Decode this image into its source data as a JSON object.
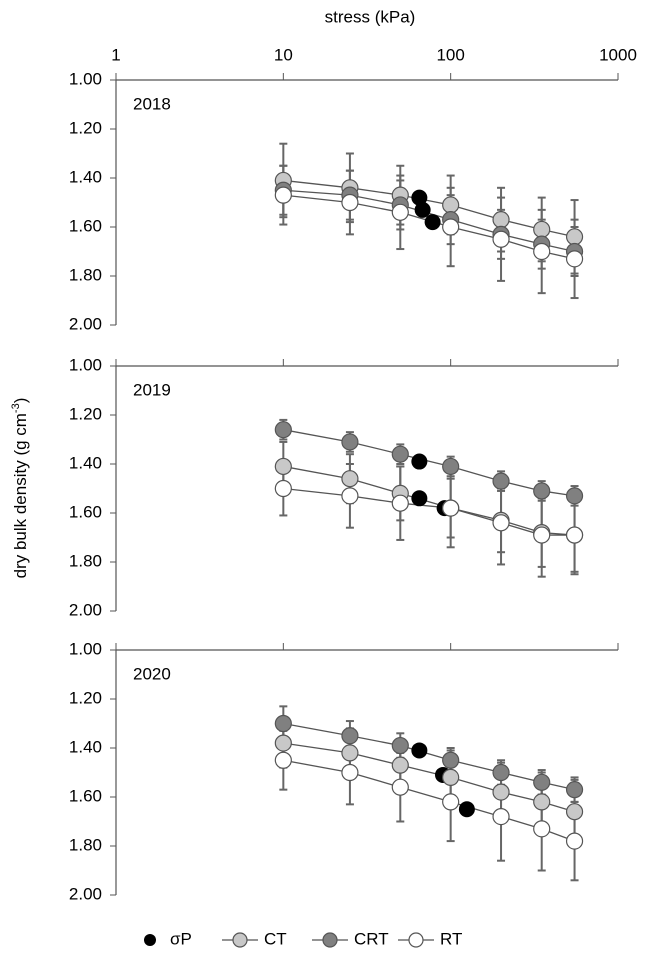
{
  "xlabel": "stress (kPa)",
  "ylabel": [
    "dry bulk density (g cm",
    "-3",
    ")"
  ],
  "chart_data": [
    {
      "type": "line",
      "title": "2018",
      "xscale": "log",
      "y_inverted": true,
      "xtick_labels": true,
      "x": [
        10,
        25,
        50,
        100,
        200,
        350,
        550
      ],
      "xlim": [
        1,
        1000
      ],
      "xticks": [
        1,
        10,
        100,
        1000
      ],
      "ylim": [
        1,
        2
      ],
      "yticks": [
        {
          "value": 1,
          "label": "1.00"
        },
        {
          "value": 1.2,
          "label": "1.20"
        },
        {
          "value": 1.4,
          "label": "1.40"
        },
        {
          "value": 1.6,
          "label": "1.60"
        },
        {
          "value": 1.8,
          "label": "1.80"
        },
        {
          "value": 2,
          "label": "2.00"
        }
      ],
      "series": [
        {
          "name": "σP",
          "type": "scatter",
          "color": "#000000",
          "x": [
            65,
            68,
            78
          ],
          "values": [
            1.48,
            1.53,
            1.58
          ]
        },
        {
          "name": "CT",
          "color": "#c8c8c8",
          "values": [
            1.41,
            1.44,
            1.47,
            1.51,
            1.57,
            1.61,
            1.64
          ],
          "errors": [
            0.15,
            0.14,
            0.12,
            0.12,
            0.13,
            0.13,
            0.15
          ]
        },
        {
          "name": "CRT",
          "color": "#808080",
          "values": [
            1.45,
            1.47,
            1.51,
            1.57,
            1.63,
            1.67,
            1.7
          ],
          "errors": [
            0.1,
            0.1,
            0.1,
            0.1,
            0.1,
            0.1,
            0.1
          ]
        },
        {
          "name": "RT",
          "color": "#ffffff",
          "values": [
            1.47,
            1.5,
            1.54,
            1.6,
            1.65,
            1.7,
            1.73
          ],
          "errors": [
            0.12,
            0.13,
            0.15,
            0.16,
            0.17,
            0.17,
            0.16
          ]
        }
      ]
    },
    {
      "type": "line",
      "title": "2019",
      "xscale": "log",
      "y_inverted": true,
      "xtick_labels": false,
      "x": [
        10,
        25,
        50,
        100,
        200,
        350,
        550
      ],
      "xlim": [
        1,
        1000
      ],
      "xticks": [
        1,
        10,
        100,
        1000
      ],
      "ylim": [
        1,
        2
      ],
      "yticks": [
        {
          "value": 1,
          "label": "1.00"
        },
        {
          "value": 1.2,
          "label": "1.20"
        },
        {
          "value": 1.4,
          "label": "1.40"
        },
        {
          "value": 1.6,
          "label": "1.60"
        },
        {
          "value": 1.8,
          "label": "1.80"
        },
        {
          "value": 2,
          "label": "2.00"
        }
      ],
      "series": [
        {
          "name": "σP",
          "type": "scatter",
          "color": "#000000",
          "x": [
            65,
            65,
            92
          ],
          "values": [
            1.39,
            1.54,
            1.58
          ]
        },
        {
          "name": "CT",
          "color": "#c8c8c8",
          "values": [
            1.41,
            1.46,
            1.52,
            1.58,
            1.63,
            1.68,
            1.69
          ],
          "errors": [
            0.1,
            0.1,
            0.11,
            0.12,
            0.13,
            0.14,
            0.15
          ]
        },
        {
          "name": "CRT",
          "color": "#808080",
          "values": [
            1.26,
            1.31,
            1.36,
            1.41,
            1.47,
            1.51,
            1.53
          ],
          "errors": [
            0.04,
            0.04,
            0.04,
            0.04,
            0.04,
            0.04,
            0.04
          ]
        },
        {
          "name": "RT",
          "color": "#ffffff",
          "values": [
            1.5,
            1.53,
            1.56,
            1.58,
            1.64,
            1.69,
            1.69
          ],
          "errors": [
            0.11,
            0.13,
            0.15,
            0.16,
            0.17,
            0.17,
            0.16
          ]
        }
      ]
    },
    {
      "type": "line",
      "title": "2020",
      "xscale": "log",
      "y_inverted": true,
      "xtick_labels": false,
      "x": [
        10,
        25,
        50,
        100,
        200,
        350,
        550
      ],
      "xlim": [
        1,
        1000
      ],
      "xticks": [
        1,
        10,
        100,
        1000
      ],
      "ylim": [
        1,
        2
      ],
      "yticks": [
        {
          "value": 1,
          "label": "1.00"
        },
        {
          "value": 1.2,
          "label": "1.20"
        },
        {
          "value": 1.4,
          "label": "1.40"
        },
        {
          "value": 1.6,
          "label": "1.60"
        },
        {
          "value": 1.8,
          "label": "1.80"
        },
        {
          "value": 2,
          "label": "2.00"
        }
      ],
      "series": [
        {
          "name": "σP",
          "type": "scatter",
          "color": "#000000",
          "x": [
            65,
            90,
            125
          ],
          "values": [
            1.41,
            1.51,
            1.65
          ]
        },
        {
          "name": "CT",
          "color": "#c8c8c8",
          "values": [
            1.38,
            1.42,
            1.47,
            1.52,
            1.58,
            1.62,
            1.66
          ],
          "errors": [
            0.1,
            0.1,
            0.1,
            0.11,
            0.12,
            0.12,
            0.13
          ]
        },
        {
          "name": "CRT",
          "color": "#808080",
          "values": [
            1.3,
            1.35,
            1.39,
            1.45,
            1.5,
            1.54,
            1.57
          ],
          "errors": [
            0.07,
            0.06,
            0.05,
            0.05,
            0.05,
            0.05,
            0.05
          ]
        },
        {
          "name": "RT",
          "color": "#ffffff",
          "values": [
            1.45,
            1.5,
            1.56,
            1.62,
            1.68,
            1.73,
            1.78
          ],
          "errors": [
            0.12,
            0.13,
            0.14,
            0.16,
            0.18,
            0.17,
            0.16
          ]
        }
      ]
    }
  ]
}
